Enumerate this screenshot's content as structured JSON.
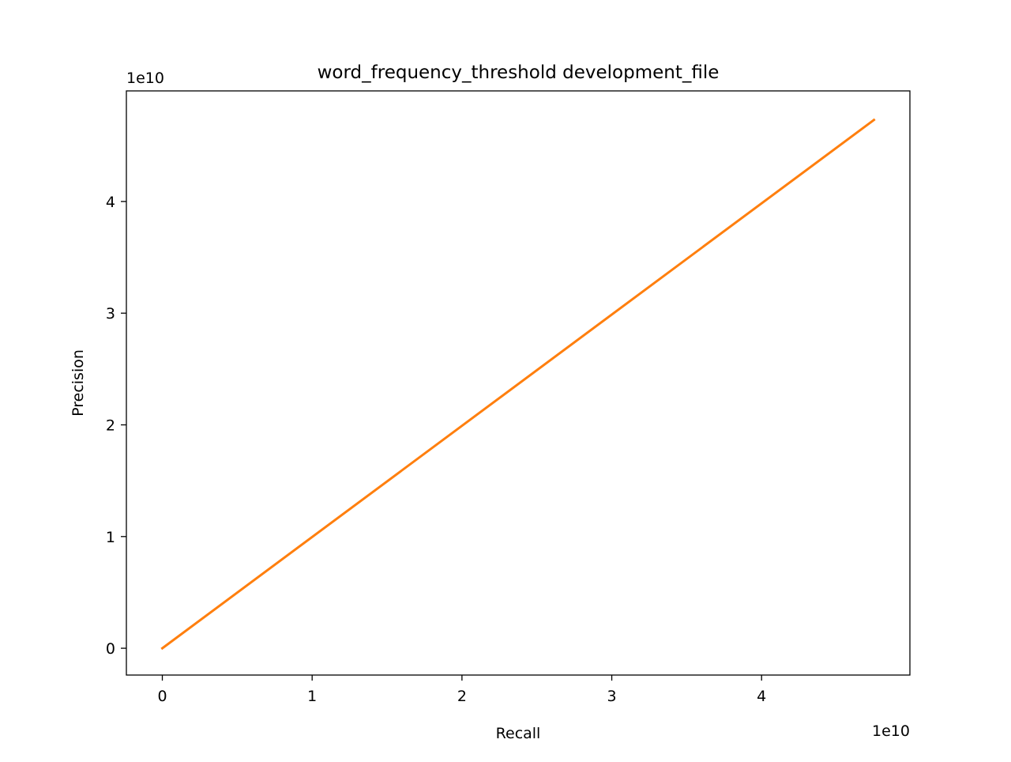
{
  "chart_data": {
    "type": "line",
    "title": "word_frequency_threshold development_file",
    "xlabel": "Recall",
    "ylabel": "Precision",
    "x_offset_label": "1e10",
    "y_offset_label": "1e10",
    "xlim": [
      -0.24,
      4.99
    ],
    "ylim": [
      -0.24,
      4.99
    ],
    "x_ticks": [
      0,
      1,
      2,
      3,
      4
    ],
    "y_ticks": [
      0,
      1,
      2,
      3,
      4
    ],
    "x_tick_labels": [
      "0",
      "1",
      "2",
      "3",
      "4"
    ],
    "y_tick_labels": [
      "0",
      "1",
      "2",
      "3",
      "4"
    ],
    "grid": false,
    "series": [
      {
        "color": "#ff7f0e",
        "x": [
          0,
          4.75
        ],
        "y": [
          0,
          4.73
        ]
      }
    ]
  }
}
